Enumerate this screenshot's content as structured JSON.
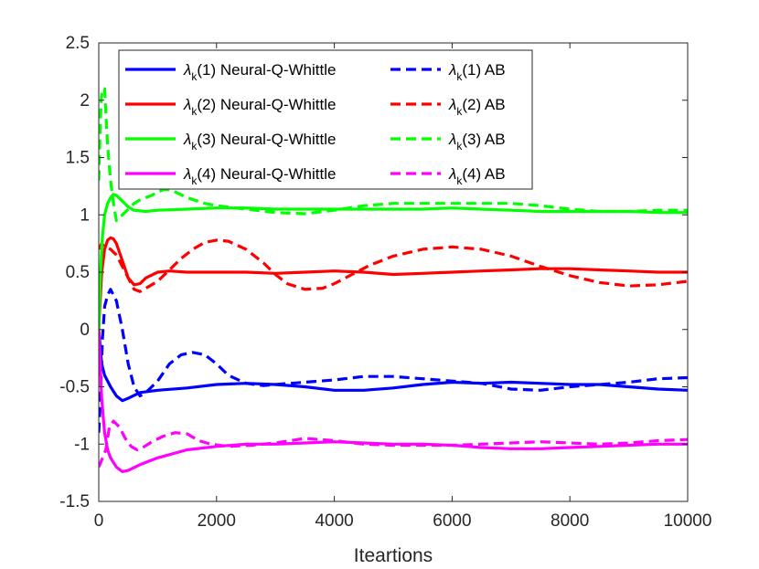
{
  "chart_data": {
    "type": "line",
    "title": "",
    "xlabel": "Iteartions",
    "ylabel": "",
    "xlim": [
      0,
      10000
    ],
    "ylim": [
      -1.5,
      2.5
    ],
    "xticks": [
      0,
      2000,
      4000,
      6000,
      8000,
      10000
    ],
    "xtick_labels": [
      "0",
      "2000",
      "4000",
      "6000",
      "8000",
      "10000"
    ],
    "yticks": [
      -1.5,
      -1,
      -0.5,
      0,
      0.5,
      1,
      1.5,
      2,
      2.5
    ],
    "ytick_labels": [
      "-1.5",
      "-1",
      "-0.5",
      "0",
      "0.5",
      "1",
      "1.5",
      "2",
      "2.5"
    ],
    "grid": false,
    "legend_position": "top-left",
    "series": [
      {
        "name": "λk(1) Neural-Q-Whittle",
        "legend_sym": "λ",
        "legend_sub": "k",
        "legend_rest": "(1) Neural-Q-Whittle",
        "color": "#0000ff",
        "style": "solid",
        "x": [
          0,
          50,
          100,
          150,
          200,
          300,
          400,
          500,
          700,
          1000,
          1500,
          2000,
          2500,
          3000,
          3500,
          4000,
          4500,
          5000,
          5500,
          6000,
          6500,
          7000,
          7500,
          8000,
          8500,
          9000,
          9500,
          10000
        ],
        "y": [
          0.0,
          -0.3,
          -0.4,
          -0.45,
          -0.5,
          -0.58,
          -0.62,
          -0.6,
          -0.55,
          -0.53,
          -0.51,
          -0.48,
          -0.47,
          -0.48,
          -0.5,
          -0.53,
          -0.53,
          -0.51,
          -0.48,
          -0.46,
          -0.47,
          -0.46,
          -0.47,
          -0.48,
          -0.48,
          -0.5,
          -0.52,
          -0.53
        ]
      },
      {
        "name": "λk(1) AB",
        "legend_sym": "λ",
        "legend_sub": "k",
        "legend_rest": "(1) AB",
        "color": "#0000ff",
        "style": "dashed",
        "x": [
          0,
          30,
          60,
          100,
          150,
          200,
          300,
          400,
          500,
          600,
          700,
          800,
          1000,
          1200,
          1400,
          1600,
          1800,
          2000,
          2200,
          2500,
          2800,
          3000,
          3500,
          4000,
          4500,
          5000,
          5500,
          6000,
          6500,
          7000,
          7500,
          8000,
          8500,
          9000,
          9500,
          10000
        ],
        "y": [
          -0.9,
          -0.6,
          -0.1,
          0.2,
          0.3,
          0.35,
          0.25,
          0.0,
          -0.3,
          -0.5,
          -0.58,
          -0.55,
          -0.45,
          -0.3,
          -0.22,
          -0.2,
          -0.22,
          -0.3,
          -0.4,
          -0.47,
          -0.49,
          -0.48,
          -0.46,
          -0.44,
          -0.41,
          -0.41,
          -0.43,
          -0.45,
          -0.47,
          -0.52,
          -0.53,
          -0.5,
          -0.48,
          -0.46,
          -0.43,
          -0.42
        ]
      },
      {
        "name": "λk(2) Neural-Q-Whittle",
        "legend_sym": "λ",
        "legend_sub": "k",
        "legend_rest": "(2) Neural-Q-Whittle",
        "color": "#ff0000",
        "style": "solid",
        "x": [
          0,
          50,
          100,
          150,
          200,
          250,
          300,
          400,
          500,
          600,
          700,
          800,
          1000,
          1200,
          1500,
          2000,
          2500,
          3000,
          3500,
          4000,
          4500,
          5000,
          5500,
          6000,
          6500,
          7000,
          7500,
          8000,
          8500,
          9000,
          9500,
          10000
        ],
        "y": [
          0.0,
          0.5,
          0.7,
          0.78,
          0.8,
          0.79,
          0.75,
          0.6,
          0.45,
          0.39,
          0.4,
          0.45,
          0.5,
          0.51,
          0.5,
          0.5,
          0.5,
          0.49,
          0.5,
          0.51,
          0.5,
          0.48,
          0.49,
          0.5,
          0.51,
          0.52,
          0.53,
          0.53,
          0.52,
          0.51,
          0.5,
          0.5
        ]
      },
      {
        "name": "λk(2) AB",
        "legend_sym": "λ",
        "legend_sub": "k",
        "legend_rest": "(2) AB",
        "color": "#ff0000",
        "style": "dashed",
        "x": [
          0,
          50,
          100,
          200,
          300,
          400,
          500,
          600,
          700,
          800,
          1000,
          1200,
          1400,
          1600,
          1800,
          2000,
          2200,
          2500,
          2800,
          3000,
          3200,
          3500,
          3800,
          4000,
          4300,
          4600,
          5000,
          5500,
          6000,
          6500,
          7000,
          7500,
          8000,
          8500,
          9000,
          9500,
          10000
        ],
        "y": [
          0.7,
          0.75,
          0.72,
          0.7,
          0.65,
          0.55,
          0.45,
          0.35,
          0.33,
          0.36,
          0.42,
          0.52,
          0.62,
          0.7,
          0.76,
          0.78,
          0.77,
          0.7,
          0.58,
          0.48,
          0.4,
          0.35,
          0.36,
          0.4,
          0.48,
          0.56,
          0.64,
          0.7,
          0.72,
          0.7,
          0.64,
          0.55,
          0.47,
          0.41,
          0.38,
          0.39,
          0.42
        ]
      },
      {
        "name": "λk(3) Neural-Q-Whittle",
        "legend_sym": "λ",
        "legend_sub": "k",
        "legend_rest": "(3) Neural-Q-Whittle",
        "color": "#00ff00",
        "style": "solid",
        "x": [
          0,
          30,
          60,
          100,
          150,
          200,
          250,
          300,
          400,
          500,
          600,
          800,
          1000,
          1500,
          2000,
          2500,
          3000,
          3500,
          4000,
          4500,
          5000,
          5500,
          6000,
          6500,
          7000,
          7500,
          8000,
          8500,
          9000,
          9500,
          10000
        ],
        "y": [
          0.0,
          0.5,
          0.8,
          1.0,
          1.1,
          1.15,
          1.18,
          1.17,
          1.12,
          1.07,
          1.04,
          1.03,
          1.04,
          1.05,
          1.06,
          1.06,
          1.05,
          1.05,
          1.05,
          1.05,
          1.05,
          1.05,
          1.06,
          1.05,
          1.04,
          1.03,
          1.03,
          1.03,
          1.03,
          1.02,
          1.02
        ]
      },
      {
        "name": "λk(3) AB",
        "legend_sym": "λ",
        "legend_sub": "k",
        "legend_rest": "(3) AB",
        "color": "#00ff00",
        "style": "dashed",
        "x": [
          0,
          20,
          40,
          60,
          80,
          100,
          120,
          150,
          200,
          250,
          300,
          400,
          500,
          600,
          700,
          800,
          900,
          1000,
          1100,
          1200,
          1300,
          1500,
          1800,
          2000,
          2500,
          3000,
          3500,
          4000,
          4500,
          5000,
          5500,
          6000,
          6500,
          7000,
          7500,
          8000,
          8500,
          9000,
          9500,
          10000
        ],
        "y": [
          1.3,
          1.7,
          2.0,
          2.1,
          2.1,
          2.1,
          1.9,
          1.6,
          1.3,
          1.1,
          0.95,
          1.0,
          1.05,
          1.1,
          1.13,
          1.15,
          1.17,
          1.2,
          1.22,
          1.22,
          1.2,
          1.15,
          1.1,
          1.08,
          1.05,
          1.02,
          1.01,
          1.04,
          1.08,
          1.1,
          1.1,
          1.1,
          1.1,
          1.1,
          1.08,
          1.05,
          1.03,
          1.03,
          1.04,
          1.04
        ]
      },
      {
        "name": "λk(4) Neural-Q-Whittle",
        "legend_sym": "λ",
        "legend_sub": "k",
        "legend_rest": "(4) Neural-Q-Whittle",
        "color": "#ff00ff",
        "style": "solid",
        "x": [
          0,
          50,
          100,
          150,
          200,
          300,
          400,
          500,
          700,
          1000,
          1500,
          2000,
          2500,
          3000,
          3500,
          4000,
          4500,
          5000,
          5500,
          6000,
          6500,
          7000,
          7500,
          8000,
          8500,
          9000,
          9500,
          10000
        ],
        "y": [
          0.0,
          -0.6,
          -0.9,
          -1.05,
          -1.12,
          -1.2,
          -1.24,
          -1.23,
          -1.18,
          -1.12,
          -1.05,
          -1.02,
          -1.0,
          -1.0,
          -0.99,
          -0.98,
          -0.99,
          -1.0,
          -1.0,
          -1.01,
          -1.03,
          -1.04,
          -1.04,
          -1.03,
          -1.02,
          -1.01,
          -1.0,
          -1.0
        ]
      },
      {
        "name": "λk(4) AB",
        "legend_sym": "λ",
        "legend_sub": "k",
        "legend_rest": "(4) AB",
        "color": "#ff00ff",
        "style": "dashed",
        "x": [
          0,
          40,
          80,
          120,
          180,
          250,
          350,
          450,
          550,
          650,
          750,
          900,
          1100,
          1300,
          1500,
          1700,
          1900,
          2200,
          2600,
          3000,
          3500,
          4000,
          4500,
          5000,
          5500,
          6000,
          6500,
          7000,
          7500,
          8000,
          8500,
          9000,
          9500,
          10000
        ],
        "y": [
          -1.2,
          -1.15,
          -1.1,
          -1.05,
          -0.85,
          -0.8,
          -0.85,
          -0.95,
          -1.02,
          -1.05,
          -1.03,
          -0.98,
          -0.93,
          -0.9,
          -0.91,
          -0.97,
          -1.0,
          -1.02,
          -1.01,
          -0.99,
          -0.95,
          -0.97,
          -1.0,
          -1.01,
          -1.01,
          -1.01,
          -1.0,
          -0.99,
          -0.98,
          -0.99,
          -1.0,
          -0.99,
          -0.97,
          -0.96
        ]
      }
    ]
  }
}
